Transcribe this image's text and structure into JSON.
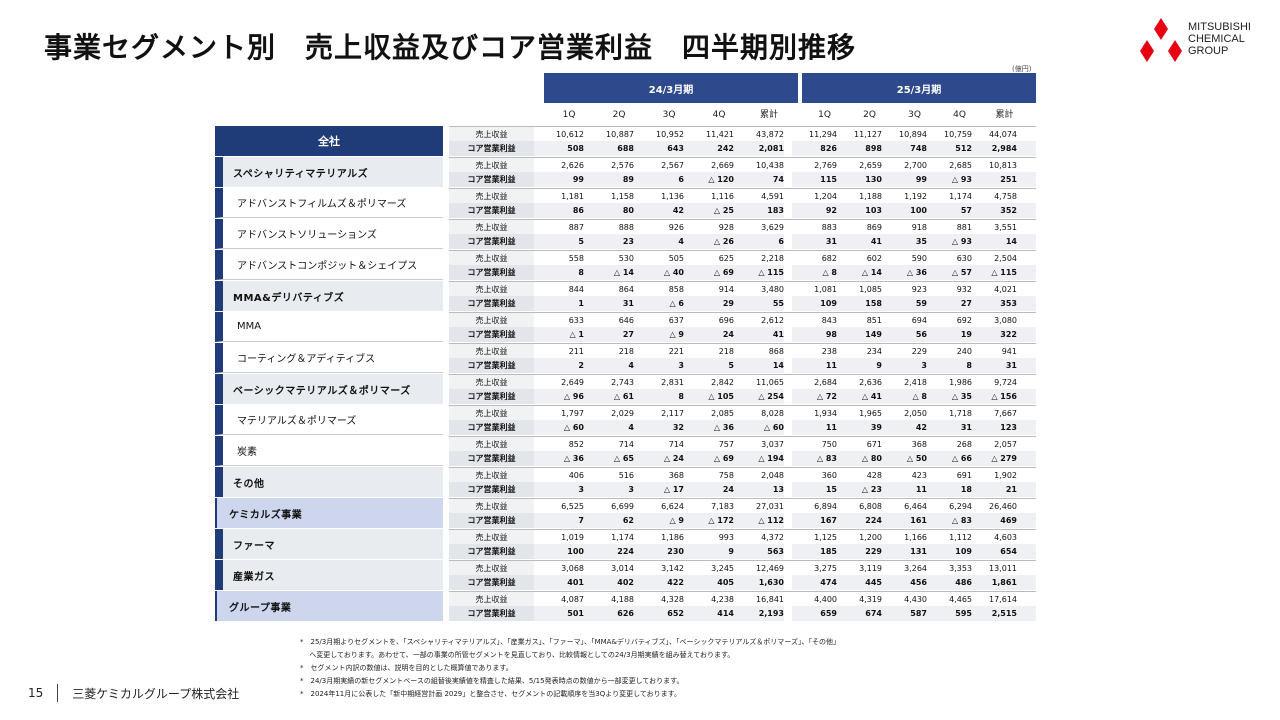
{
  "title": "事業セグメント別　売上収益及びコア営業利益　四半期別推移",
  "logo": {
    "lines": [
      "MITSUBISHI",
      "CHEMICAL",
      "GROUP"
    ],
    "color": "#e60012"
  },
  "unit": "(億円)",
  "periods": [
    {
      "label": "24/3月期",
      "quarters": [
        "1Q",
        "2Q",
        "3Q",
        "4Q",
        "累計"
      ]
    },
    {
      "label": "25/3月期",
      "quarters": [
        "1Q",
        "2Q",
        "3Q",
        "4Q",
        "累計"
      ]
    }
  ],
  "row_labels": {
    "sales": "売上収益",
    "core": "コア営業利益"
  },
  "segments": [
    {
      "name": "全社",
      "style": "header",
      "sales": [
        "10,612",
        "10,887",
        "10,952",
        "11,421",
        "43,872",
        "11,294",
        "11,127",
        "10,894",
        "10,759",
        "44,074"
      ],
      "core": [
        "508",
        "688",
        "643",
        "242",
        "2,081",
        "826",
        "898",
        "748",
        "512",
        "2,984"
      ]
    },
    {
      "name": "スペシャリティマテリアルズ",
      "style": "lvl1",
      "sales": [
        "2,626",
        "2,576",
        "2,567",
        "2,669",
        "10,438",
        "2,769",
        "2,659",
        "2,700",
        "2,685",
        "10,813"
      ],
      "core": [
        "99",
        "89",
        "6",
        "△ 120",
        "74",
        "115",
        "130",
        "99",
        "△ 93",
        "251"
      ]
    },
    {
      "name": "アドバンストフィルムズ＆ポリマーズ",
      "style": "lvl2",
      "sales": [
        "1,181",
        "1,158",
        "1,136",
        "1,116",
        "4,591",
        "1,204",
        "1,188",
        "1,192",
        "1,174",
        "4,758"
      ],
      "core": [
        "86",
        "80",
        "42",
        "△ 25",
        "183",
        "92",
        "103",
        "100",
        "57",
        "352"
      ]
    },
    {
      "name": "アドバンストソリューションズ",
      "style": "lvl2",
      "sales": [
        "887",
        "888",
        "926",
        "928",
        "3,629",
        "883",
        "869",
        "918",
        "881",
        "3,551"
      ],
      "core": [
        "5",
        "23",
        "4",
        "△ 26",
        "6",
        "31",
        "41",
        "35",
        "△ 93",
        "14"
      ]
    },
    {
      "name": "アドバンストコンポジット＆シェイプス",
      "style": "lvl2",
      "sales": [
        "558",
        "530",
        "505",
        "625",
        "2,218",
        "682",
        "602",
        "590",
        "630",
        "2,504"
      ],
      "core": [
        "8",
        "△ 14",
        "△ 40",
        "△ 69",
        "△ 115",
        "△ 8",
        "△ 14",
        "△ 36",
        "△ 57",
        "△ 115"
      ]
    },
    {
      "name": "MMA&デリバティブズ",
      "style": "lvl1",
      "sales": [
        "844",
        "864",
        "858",
        "914",
        "3,480",
        "1,081",
        "1,085",
        "923",
        "932",
        "4,021"
      ],
      "core": [
        "1",
        "31",
        "△ 6",
        "29",
        "55",
        "109",
        "158",
        "59",
        "27",
        "353"
      ]
    },
    {
      "name": "MMA",
      "style": "lvl2",
      "sales": [
        "633",
        "646",
        "637",
        "696",
        "2,612",
        "843",
        "851",
        "694",
        "692",
        "3,080"
      ],
      "core": [
        "△ 1",
        "27",
        "△ 9",
        "24",
        "41",
        "98",
        "149",
        "56",
        "19",
        "322"
      ]
    },
    {
      "name": "コーティング＆アディティブス",
      "style": "lvl2",
      "sales": [
        "211",
        "218",
        "221",
        "218",
        "868",
        "238",
        "234",
        "229",
        "240",
        "941"
      ],
      "core": [
        "2",
        "4",
        "3",
        "5",
        "14",
        "11",
        "9",
        "3",
        "8",
        "31"
      ]
    },
    {
      "name": "ベーシックマテリアルズ＆ポリマーズ",
      "style": "lvl1",
      "sales": [
        "2,649",
        "2,743",
        "2,831",
        "2,842",
        "11,065",
        "2,684",
        "2,636",
        "2,418",
        "1,986",
        "9,724"
      ],
      "core": [
        "△ 96",
        "△ 61",
        "8",
        "△ 105",
        "△ 254",
        "△ 72",
        "△ 41",
        "△ 8",
        "△ 35",
        "△ 156"
      ]
    },
    {
      "name": "マテリアルズ＆ポリマーズ",
      "style": "lvl2",
      "sales": [
        "1,797",
        "2,029",
        "2,117",
        "2,085",
        "8,028",
        "1,934",
        "1,965",
        "2,050",
        "1,718",
        "7,667"
      ],
      "core": [
        "△ 60",
        "4",
        "32",
        "△ 36",
        "△ 60",
        "11",
        "39",
        "42",
        "31",
        "123"
      ]
    },
    {
      "name": "炭素",
      "style": "lvl2",
      "sales": [
        "852",
        "714",
        "714",
        "757",
        "3,037",
        "750",
        "671",
        "368",
        "268",
        "2,057"
      ],
      "core": [
        "△ 36",
        "△ 65",
        "△ 24",
        "△ 69",
        "△ 194",
        "△ 83",
        "△ 80",
        "△ 50",
        "△ 66",
        "△ 279"
      ]
    },
    {
      "name": "その他",
      "style": "lvl1",
      "sales": [
        "406",
        "516",
        "368",
        "758",
        "2,048",
        "360",
        "428",
        "423",
        "691",
        "1,902"
      ],
      "core": [
        "3",
        "3",
        "△ 17",
        "24",
        "13",
        "15",
        "△ 23",
        "11",
        "18",
        "21"
      ]
    },
    {
      "name": "ケミカルズ事業",
      "style": "seg",
      "sales": [
        "6,525",
        "6,699",
        "6,624",
        "7,183",
        "27,031",
        "6,894",
        "6,808",
        "6,464",
        "6,294",
        "26,460"
      ],
      "core": [
        "7",
        "62",
        "△ 9",
        "△ 172",
        "△ 112",
        "167",
        "224",
        "161",
        "△ 83",
        "469"
      ]
    },
    {
      "name": "ファーマ",
      "style": "lvl1",
      "sales": [
        "1,019",
        "1,174",
        "1,186",
        "993",
        "4,372",
        "1,125",
        "1,200",
        "1,166",
        "1,112",
        "4,603"
      ],
      "core": [
        "100",
        "224",
        "230",
        "9",
        "563",
        "185",
        "229",
        "131",
        "109",
        "654"
      ]
    },
    {
      "name": "産業ガス",
      "style": "lvl1",
      "sales": [
        "3,068",
        "3,014",
        "3,142",
        "3,245",
        "12,469",
        "3,275",
        "3,119",
        "3,264",
        "3,353",
        "13,011"
      ],
      "core": [
        "401",
        "402",
        "422",
        "405",
        "1,630",
        "474",
        "445",
        "456",
        "486",
        "1,861"
      ]
    },
    {
      "name": "グループ事業",
      "style": "seg",
      "sales": [
        "4,087",
        "4,188",
        "4,328",
        "4,238",
        "16,841",
        "4,400",
        "4,319",
        "4,430",
        "4,465",
        "17,614"
      ],
      "core": [
        "501",
        "626",
        "652",
        "414",
        "2,193",
        "659",
        "674",
        "587",
        "595",
        "2,515"
      ]
    }
  ],
  "notes": [
    "*　25/3月期よりセグメントを、「スペシャリティマテリアルズ」、「産業ガス」、「ファーマ」、「MMA&デリバティブズ」、「ベーシックマテリアルズ＆ポリマーズ」、「その他」",
    "　 へ変更しております。あわせて、一部の事業の所管セグメントを見直しており、比較情報としての24/3月期実績を組み替えております。",
    "*　セグメント内訳の数値は、説明を目的とした概算値であります。",
    "*　24/3月期実績の新セグメントベースの組替後実績値を精査した結果、5/15発表時点の数値から一部変更しております。",
    "*　2024年11月に公表した「新中期経営計画 2029」と整合させ、セグメントの記載順序を当3Qより変更しております。"
  ],
  "footer": {
    "page": "15",
    "company": "三菱ケミカルグループ株式会社"
  }
}
